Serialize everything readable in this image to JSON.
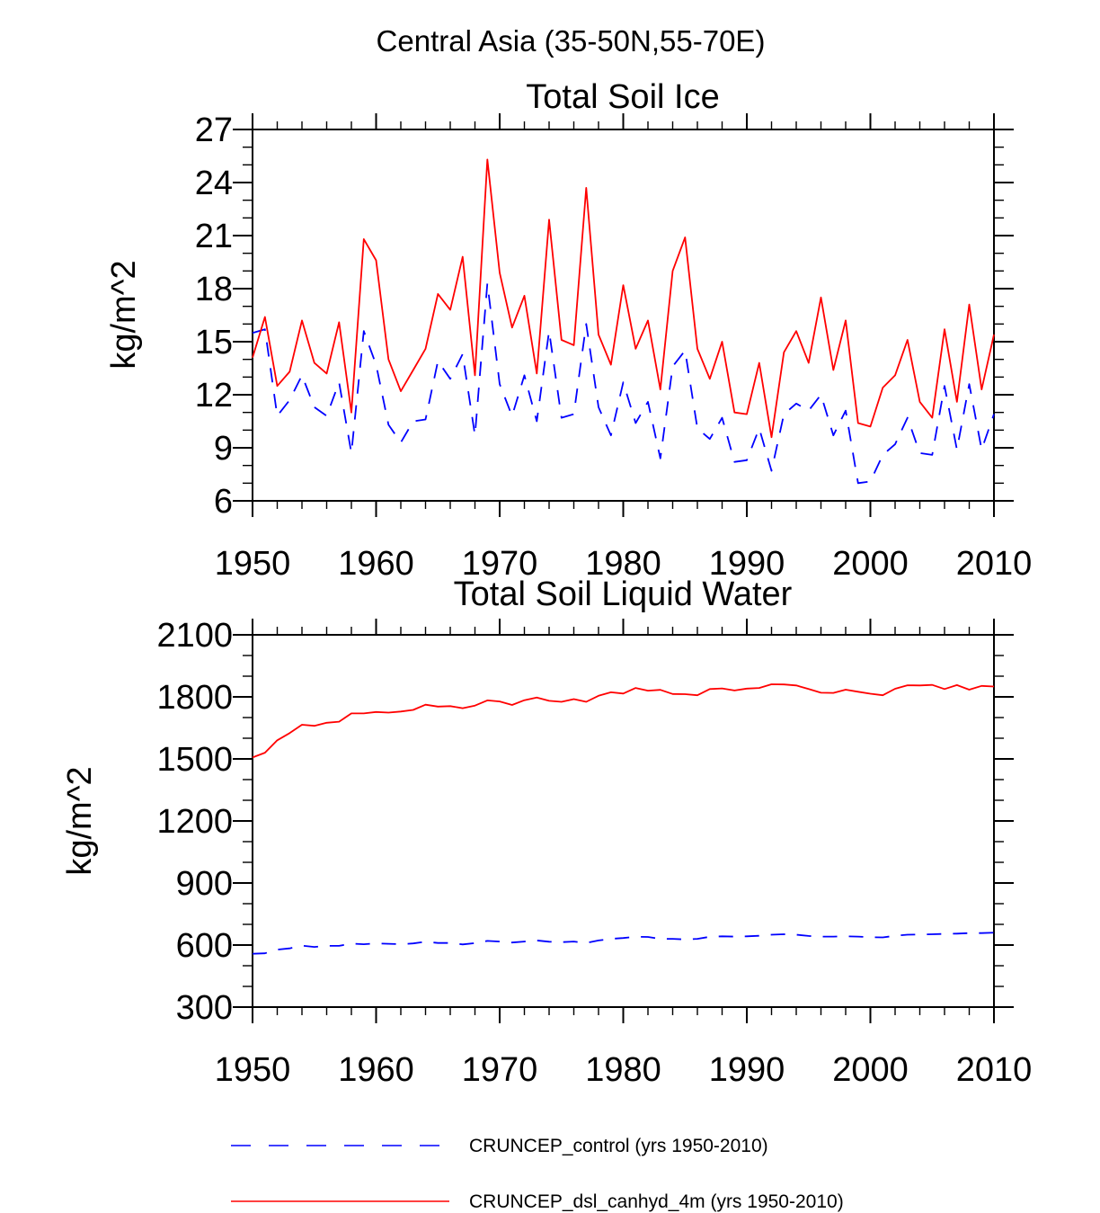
{
  "figure_title": "Central Asia (35-50N,55-70E)",
  "colors": {
    "control": "#0000ff",
    "dsl": "#ff0000",
    "axis": "#000000"
  },
  "chart_data": [
    {
      "type": "line",
      "title": "Total Soil Ice",
      "xlabel": "",
      "ylabel": "kg/m^2",
      "xlim": [
        1950,
        2010
      ],
      "ylim": [
        6,
        27
      ],
      "x_ticks": [
        1950,
        1960,
        1970,
        1980,
        1990,
        2000,
        2010
      ],
      "y_ticks": [
        6,
        9,
        12,
        15,
        18,
        21,
        24,
        27
      ],
      "x_tick_labels": [
        "1950",
        "1960",
        "1970",
        "1980",
        "1990",
        "2000",
        "2010"
      ],
      "y_tick_labels": [
        "6",
        "9",
        "12",
        "15",
        "18",
        "21",
        "24",
        "27"
      ],
      "x_minor_step": 2,
      "y_minor_step": 1,
      "x": [
        1950,
        1951,
        1952,
        1953,
        1954,
        1955,
        1956,
        1957,
        1958,
        1959,
        1960,
        1961,
        1962,
        1963,
        1964,
        1965,
        1966,
        1967,
        1968,
        1969,
        1970,
        1971,
        1972,
        1973,
        1974,
        1975,
        1976,
        1977,
        1978,
        1979,
        1980,
        1981,
        1982,
        1983,
        1984,
        1985,
        1986,
        1987,
        1988,
        1989,
        1990,
        1991,
        1992,
        1993,
        1994,
        1995,
        1996,
        1997,
        1998,
        1999,
        2000,
        2001,
        2002,
        2003,
        2004,
        2005,
        2006,
        2007,
        2008,
        2009,
        2010
      ],
      "series": [
        {
          "name": "CRUNCEP_control",
          "style": "dashed",
          "values": [
            15.5,
            15.7,
            10.8,
            11.7,
            13.1,
            11.3,
            10.8,
            12.7,
            8.7,
            15.6,
            13.7,
            10.3,
            9.3,
            10.5,
            10.6,
            13.9,
            12.9,
            14.3,
            9.7,
            18.3,
            12.6,
            10.8,
            13.1,
            10.5,
            15.6,
            10.7,
            10.9,
            16.0,
            11.3,
            9.7,
            12.7,
            10.4,
            11.6,
            8.4,
            13.6,
            14.5,
            10.1,
            9.5,
            10.7,
            8.2,
            8.3,
            10.1,
            7.7,
            10.9,
            11.5,
            11.1,
            12.0,
            9.7,
            11.1,
            7.0,
            7.1,
            8.6,
            9.2,
            10.7,
            8.7,
            8.6,
            12.5,
            8.9,
            12.6,
            8.9,
            10.9
          ]
        },
        {
          "name": "CRUNCEP_dsl_canhyd_4m",
          "style": "solid",
          "values": [
            14.1,
            16.4,
            12.5,
            13.3,
            16.2,
            13.8,
            13.2,
            16.1,
            11.0,
            20.8,
            19.6,
            14.0,
            12.2,
            13.4,
            14.6,
            17.7,
            16.8,
            19.8,
            13.1,
            25.3,
            18.9,
            15.8,
            17.6,
            13.2,
            21.9,
            15.1,
            14.8,
            23.7,
            15.4,
            13.7,
            18.2,
            14.6,
            16.2,
            12.3,
            19.0,
            20.9,
            14.6,
            12.9,
            15.0,
            11.0,
            10.9,
            13.8,
            9.6,
            14.4,
            15.6,
            13.8,
            17.5,
            13.4,
            16.2,
            10.4,
            10.2,
            12.4,
            13.1,
            15.1,
            11.6,
            10.7,
            15.7,
            11.6,
            17.1,
            12.3,
            15.4
          ]
        }
      ]
    },
    {
      "type": "line",
      "title": "Total Soil Liquid Water",
      "xlabel": "",
      "ylabel": "kg/m^2",
      "xlim": [
        1950,
        2010
      ],
      "ylim": [
        300,
        2100
      ],
      "x_ticks": [
        1950,
        1960,
        1970,
        1980,
        1990,
        2000,
        2010
      ],
      "y_ticks": [
        300,
        600,
        900,
        1200,
        1500,
        1800,
        2100
      ],
      "x_tick_labels": [
        "1950",
        "1960",
        "1970",
        "1980",
        "1990",
        "2000",
        "2010"
      ],
      "y_tick_labels": [
        "300",
        "600",
        "900",
        "1200",
        "1500",
        "1800",
        "2100"
      ],
      "x_minor_step": 2,
      "y_minor_step": 100,
      "x": [
        1950,
        1951,
        1952,
        1953,
        1954,
        1955,
        1956,
        1957,
        1958,
        1959,
        1960,
        1961,
        1962,
        1963,
        1964,
        1965,
        1966,
        1967,
        1968,
        1969,
        1970,
        1971,
        1972,
        1973,
        1974,
        1975,
        1976,
        1977,
        1978,
        1979,
        1980,
        1981,
        1982,
        1983,
        1984,
        1985,
        1986,
        1987,
        1988,
        1989,
        1990,
        1991,
        1992,
        1993,
        1994,
        1995,
        1996,
        1997,
        1998,
        1999,
        2000,
        2001,
        2002,
        2003,
        2004,
        2005,
        2006,
        2007,
        2008,
        2009,
        2010
      ],
      "series": [
        {
          "name": "CRUNCEP_control",
          "style": "dashed",
          "values": [
            558,
            560,
            578,
            584,
            597,
            591,
            596,
            596,
            607,
            604,
            608,
            606,
            604,
            608,
            616,
            610,
            610,
            603,
            609,
            620,
            617,
            612,
            617,
            622,
            616,
            614,
            617,
            610,
            622,
            630,
            634,
            640,
            639,
            630,
            630,
            627,
            630,
            640,
            642,
            641,
            642,
            645,
            650,
            652,
            650,
            644,
            641,
            641,
            642,
            641,
            638,
            637,
            645,
            650,
            651,
            652,
            654,
            655,
            658,
            658,
            660
          ]
        },
        {
          "name": "CRUNCEP_dsl_canhyd_4m",
          "style": "solid",
          "values": [
            1507,
            1530,
            1590,
            1625,
            1665,
            1660,
            1675,
            1680,
            1720,
            1720,
            1727,
            1724,
            1729,
            1737,
            1762,
            1753,
            1755,
            1745,
            1758,
            1783,
            1778,
            1761,
            1784,
            1797,
            1781,
            1776,
            1789,
            1776,
            1805,
            1822,
            1816,
            1843,
            1830,
            1834,
            1814,
            1813,
            1808,
            1838,
            1841,
            1831,
            1840,
            1843,
            1861,
            1860,
            1855,
            1838,
            1820,
            1819,
            1835,
            1825,
            1815,
            1808,
            1839,
            1856,
            1855,
            1858,
            1838,
            1857,
            1835,
            1853,
            1850
          ]
        }
      ]
    }
  ],
  "legend": {
    "placement": "bottom",
    "entries": [
      {
        "label": "CRUNCEP_control (yrs 1950-2010)",
        "style": "dashed",
        "color": "#0000ff"
      },
      {
        "label": "CRUNCEP_dsl_canhyd_4m (yrs 1950-2010)",
        "style": "solid",
        "color": "#ff0000"
      }
    ]
  }
}
